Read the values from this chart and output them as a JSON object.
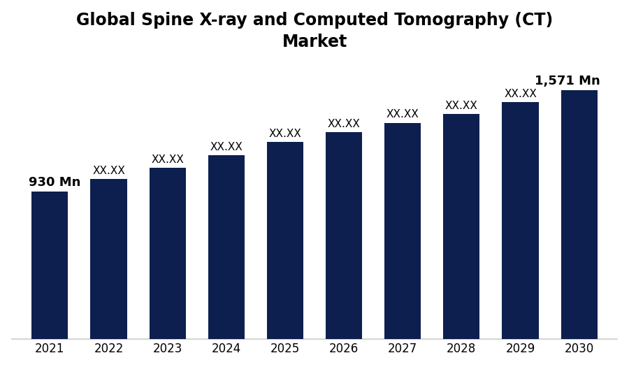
{
  "title_line1": "Global Spine X-ray and Computed Tomography (CT)",
  "title_line2": "Market",
  "title_fontsize": 17,
  "title_fontweight": "bold",
  "categories": [
    "2021",
    "2022",
    "2023",
    "2024",
    "2025",
    "2026",
    "2027",
    "2028",
    "2029",
    "2030"
  ],
  "values": [
    930,
    1010,
    1080,
    1160,
    1245,
    1305,
    1365,
    1420,
    1495,
    1571
  ],
  "bar_color": "#0d1f4e",
  "label_2021": "930 Mn",
  "label_2030": "1,571 Mn",
  "hidden_label": "XX.XX",
  "background_color": "#ffffff",
  "ylim": [
    0,
    1750
  ],
  "bar_width": 0.62,
  "label_fontsize_bold": 13,
  "label_fontsize_small": 11,
  "label_fontweight": "bold",
  "tick_fontsize": 12
}
